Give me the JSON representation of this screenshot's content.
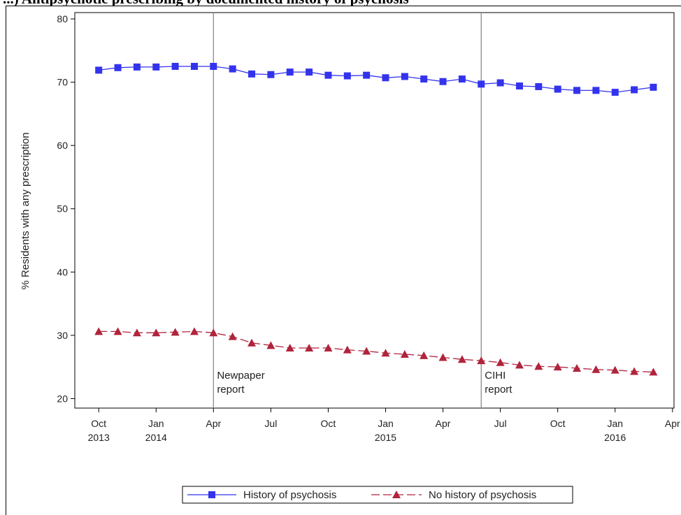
{
  "title": "...) Antipsychotic prescribing by documented history of psychosis",
  "chart_data": {
    "type": "line",
    "ylabel": "% Residents with any prescription",
    "xlabel": "",
    "ylim": [
      18.5,
      81
    ],
    "yticks": [
      20,
      30,
      40,
      50,
      60,
      70,
      80
    ],
    "xticks": [
      {
        "date": "2013-10",
        "label": [
          "Oct",
          "2013"
        ]
      },
      {
        "date": "2014-01",
        "label": [
          "Jan",
          "2014"
        ]
      },
      {
        "date": "2014-04",
        "label": [
          "Apr"
        ]
      },
      {
        "date": "2014-07",
        "label": [
          "Jul"
        ]
      },
      {
        "date": "2014-10",
        "label": [
          "Oct"
        ]
      },
      {
        "date": "2015-01",
        "label": [
          "Jan",
          "2015"
        ]
      },
      {
        "date": "2015-04",
        "label": [
          "Apr"
        ]
      },
      {
        "date": "2015-07",
        "label": [
          "Jul"
        ]
      },
      {
        "date": "2015-10",
        "label": [
          "Oct"
        ]
      },
      {
        "date": "2016-01",
        "label": [
          "Jan",
          "2016"
        ]
      },
      {
        "date": "2016-04",
        "label": [
          "Apr"
        ]
      }
    ],
    "xlim": [
      "2013-09",
      "2016-04"
    ],
    "grid": false,
    "legend_position": "bottom",
    "reference_lines": [
      {
        "date": "2014-04",
        "label": [
          "Newpaper",
          "report"
        ]
      },
      {
        "date": "2015-06",
        "label": [
          "CIHI",
          "report"
        ]
      }
    ],
    "x": [
      "2013-10",
      "2013-11",
      "2013-12",
      "2014-01",
      "2014-02",
      "2014-03",
      "2014-04",
      "2014-05",
      "2014-06",
      "2014-07",
      "2014-08",
      "2014-09",
      "2014-10",
      "2014-11",
      "2014-12",
      "2015-01",
      "2015-02",
      "2015-03",
      "2015-04",
      "2015-05",
      "2015-06",
      "2015-07",
      "2015-08",
      "2015-09",
      "2015-10",
      "2015-11",
      "2015-12",
      "2016-01",
      "2016-02",
      "2016-03"
    ],
    "series": [
      {
        "name": "History of psychosis",
        "color": "#3333ee",
        "marker": "square",
        "dash": "solid",
        "values": [
          71.9,
          72.3,
          72.4,
          72.4,
          72.5,
          72.5,
          72.5,
          72.1,
          71.3,
          71.2,
          71.6,
          71.6,
          71.1,
          71.0,
          71.1,
          70.7,
          70.9,
          70.5,
          70.1,
          70.5,
          69.7,
          69.9,
          69.4,
          69.3,
          68.9,
          68.7,
          68.7,
          68.4,
          68.8,
          69.2
        ]
      },
      {
        "name": "No history of psychosis",
        "color": "#b0243c",
        "marker": "triangle",
        "dash": "dashed",
        "values": [
          30.6,
          30.6,
          30.4,
          30.4,
          30.5,
          30.6,
          30.4,
          29.8,
          28.8,
          28.4,
          28.0,
          28.0,
          28.0,
          27.7,
          27.5,
          27.2,
          27.0,
          26.8,
          26.5,
          26.2,
          26.0,
          25.7,
          25.3,
          25.1,
          25.0,
          24.8,
          24.6,
          24.5,
          24.3,
          24.2
        ]
      }
    ]
  }
}
